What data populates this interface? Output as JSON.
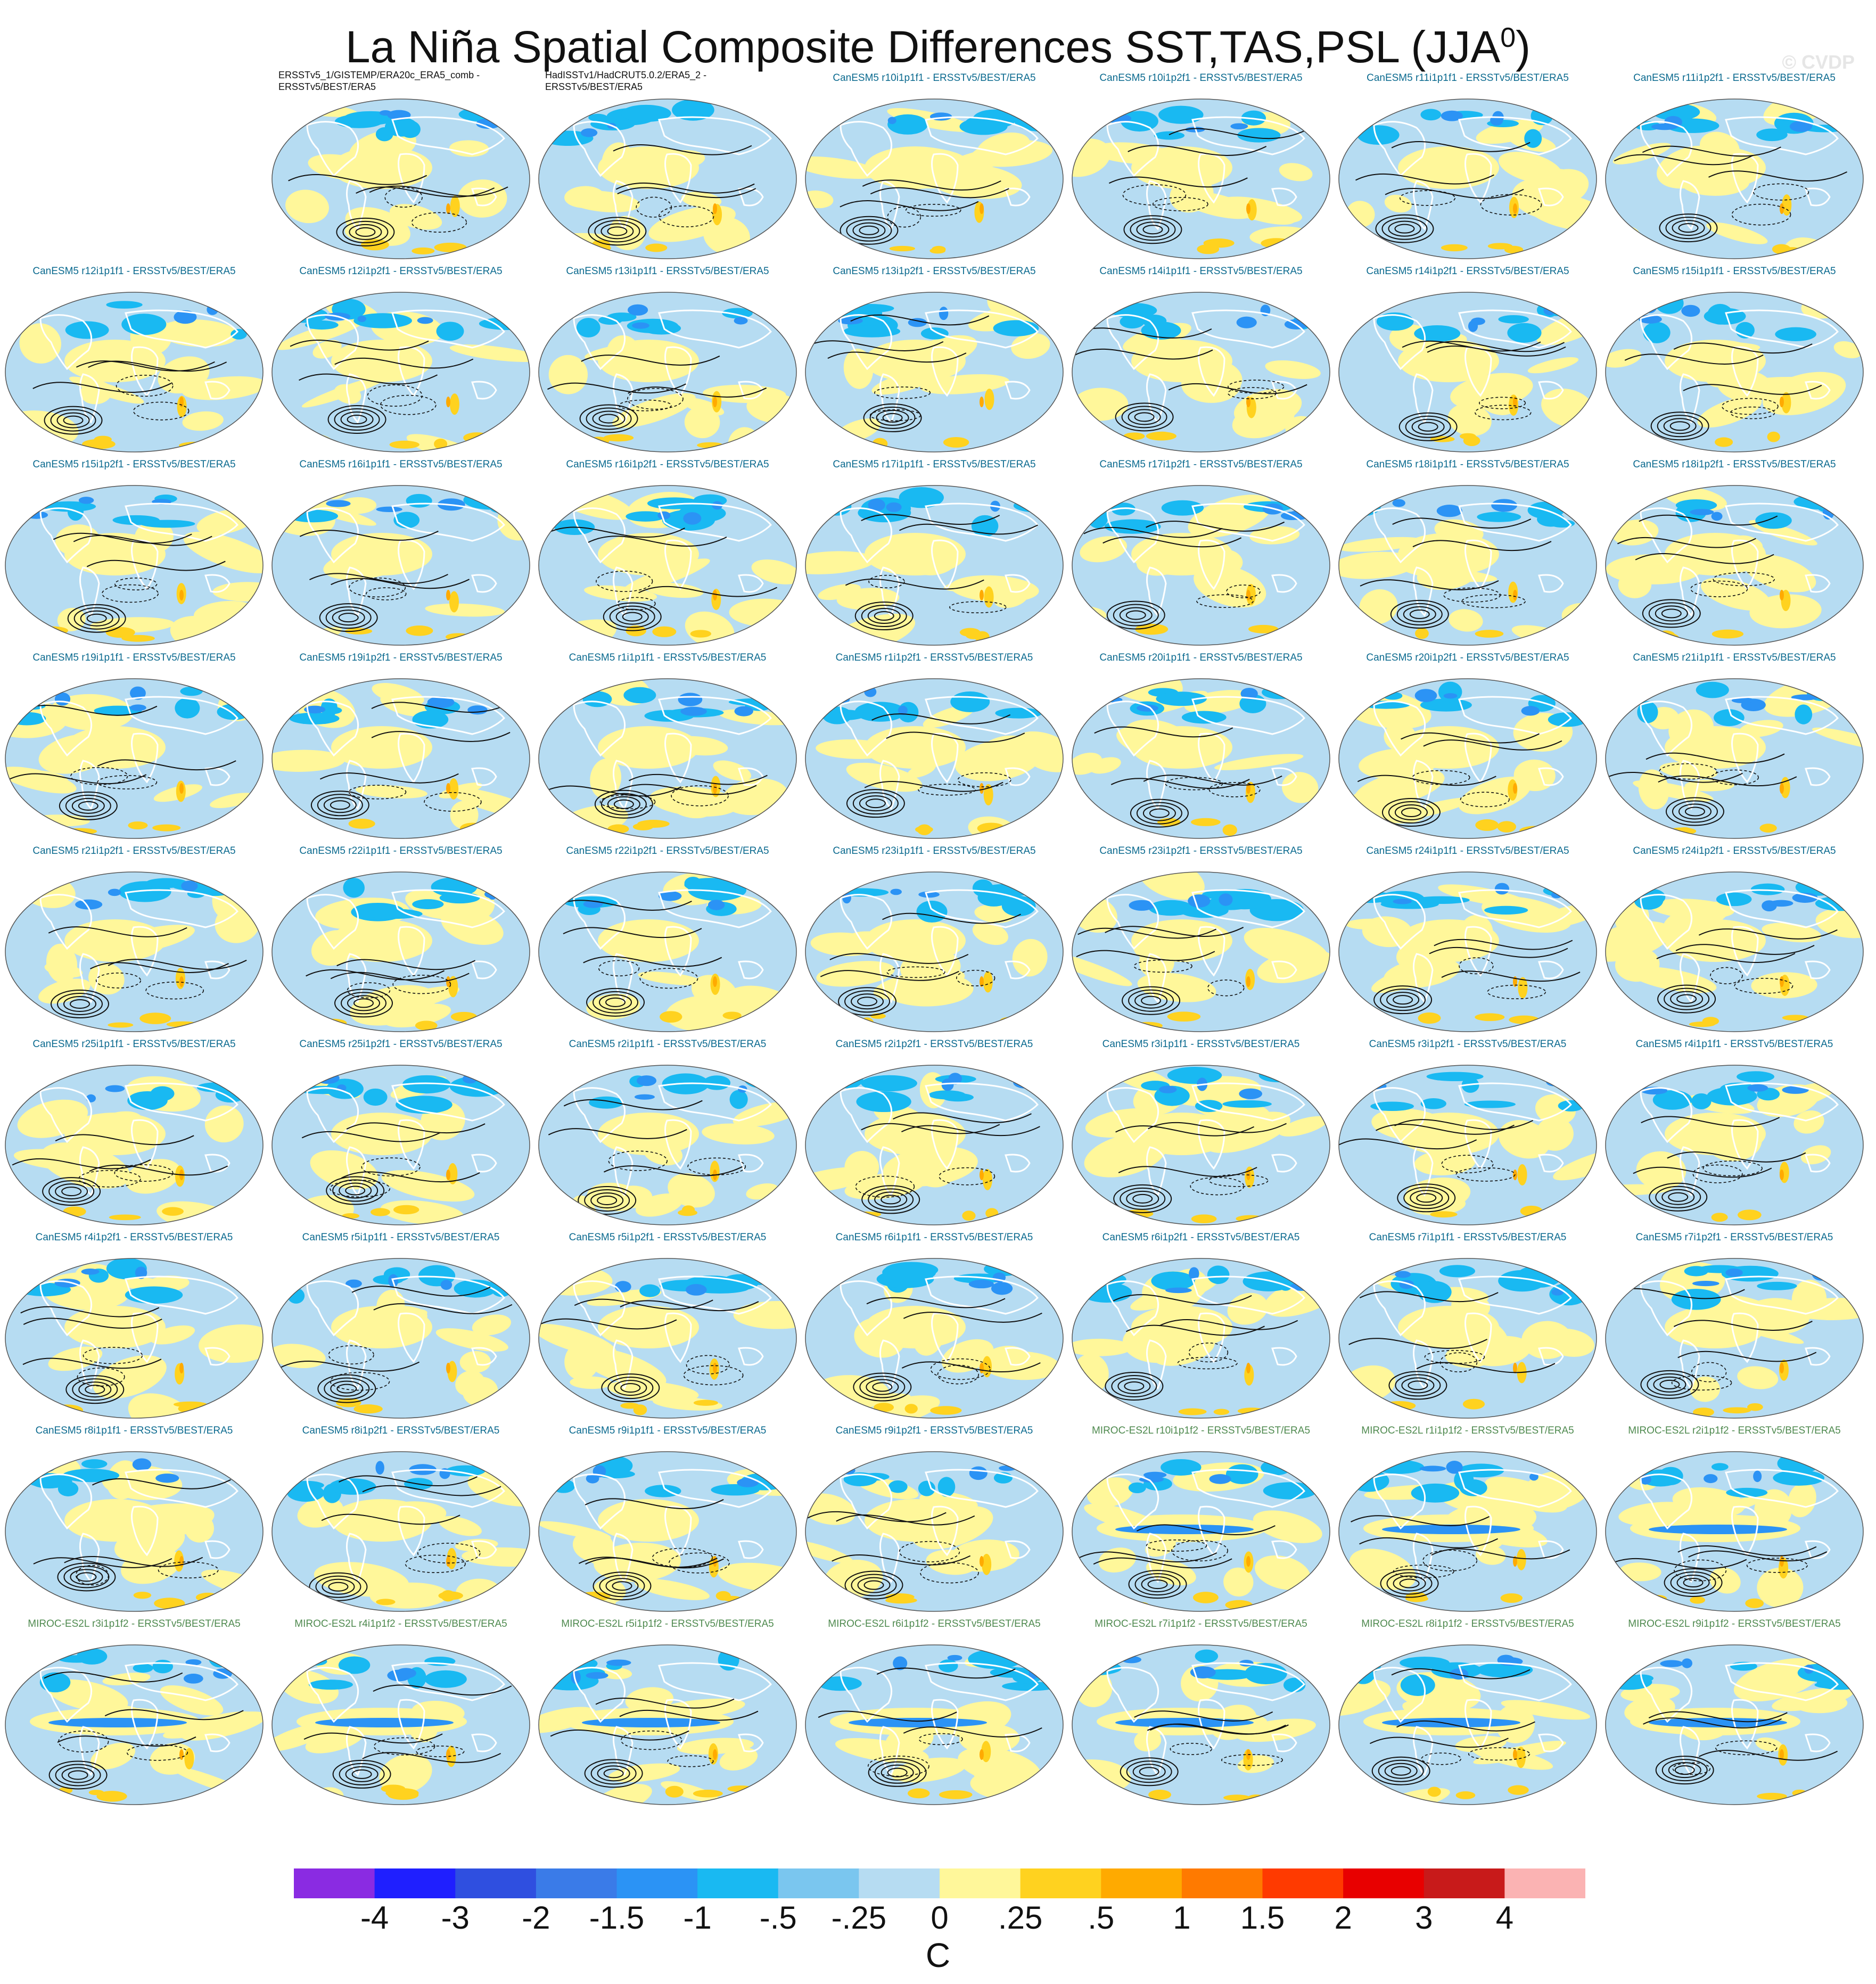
{
  "title": {
    "text": "La Niña Spatial Composite Differences SST,TAS,PSL (JJA",
    "superscript": "0",
    "close": ")"
  },
  "watermark": "© CVDP",
  "colorbar": {
    "units": "C",
    "colors": [
      "#8a2be2",
      "#1f1fff",
      "#2f4fe0",
      "#3a7be8",
      "#2b93f5",
      "#19b9f2",
      "#7ac6ef",
      "#b6dcf2",
      "#fff79a",
      "#ffd21f",
      "#ffaa00",
      "#ff7a00",
      "#ff3a00",
      "#e80000",
      "#c81a1a",
      "#fbb3b3"
    ],
    "labels": [
      "-4",
      "-3",
      "-2",
      "-1.5",
      "-1",
      "-.5",
      "-.25",
      "0",
      ".25",
      ".5",
      "1",
      "1.5",
      "2",
      "3",
      "4"
    ]
  },
  "panels": [
    {
      "label": "",
      "model": "blank"
    },
    {
      "label": "ERSSTv5_1/GISTEMP/ERA20c_ERA5_comb - ERSSTv5/BEST/ERA5",
      "model": "obs"
    },
    {
      "label": "HadISSTv1/HadCRUT5.0.2/ERA5_2 - ERSSTv5/BEST/ERA5",
      "model": "obs"
    },
    {
      "label": "CanESM5 r10i1p1f1 - ERSSTv5/BEST/ERA5",
      "model": "canesm"
    },
    {
      "label": "CanESM5 r10i1p2f1 - ERSSTv5/BEST/ERA5",
      "model": "canesm"
    },
    {
      "label": "CanESM5 r11i1p1f1 - ERSSTv5/BEST/ERA5",
      "model": "canesm"
    },
    {
      "label": "CanESM5 r11i1p2f1 - ERSSTv5/BEST/ERA5",
      "model": "canesm"
    },
    {
      "label": "CanESM5 r12i1p1f1 - ERSSTv5/BEST/ERA5",
      "model": "canesm"
    },
    {
      "label": "CanESM5 r12i1p2f1 - ERSSTv5/BEST/ERA5",
      "model": "canesm"
    },
    {
      "label": "CanESM5 r13i1p1f1 - ERSSTv5/BEST/ERA5",
      "model": "canesm"
    },
    {
      "label": "CanESM5 r13i1p2f1 - ERSSTv5/BEST/ERA5",
      "model": "canesm"
    },
    {
      "label": "CanESM5 r14i1p1f1 - ERSSTv5/BEST/ERA5",
      "model": "canesm"
    },
    {
      "label": "CanESM5 r14i1p2f1 - ERSSTv5/BEST/ERA5",
      "model": "canesm"
    },
    {
      "label": "CanESM5 r15i1p1f1 - ERSSTv5/BEST/ERA5",
      "model": "canesm"
    },
    {
      "label": "CanESM5 r15i1p2f1 - ERSSTv5/BEST/ERA5",
      "model": "canesm"
    },
    {
      "label": "CanESM5 r16i1p1f1 - ERSSTv5/BEST/ERA5",
      "model": "canesm"
    },
    {
      "label": "CanESM5 r16i1p2f1 - ERSSTv5/BEST/ERA5",
      "model": "canesm"
    },
    {
      "label": "CanESM5 r17i1p1f1 - ERSSTv5/BEST/ERA5",
      "model": "canesm"
    },
    {
      "label": "CanESM5 r17i1p2f1 - ERSSTv5/BEST/ERA5",
      "model": "canesm"
    },
    {
      "label": "CanESM5 r18i1p1f1 - ERSSTv5/BEST/ERA5",
      "model": "canesm"
    },
    {
      "label": "CanESM5 r18i1p2f1 - ERSSTv5/BEST/ERA5",
      "model": "canesm"
    },
    {
      "label": "CanESM5 r19i1p1f1 - ERSSTv5/BEST/ERA5",
      "model": "canesm"
    },
    {
      "label": "CanESM5 r19i1p2f1 - ERSSTv5/BEST/ERA5",
      "model": "canesm"
    },
    {
      "label": "CanESM5 r1i1p1f1 - ERSSTv5/BEST/ERA5",
      "model": "canesm"
    },
    {
      "label": "CanESM5 r1i1p2f1 - ERSSTv5/BEST/ERA5",
      "model": "canesm"
    },
    {
      "label": "CanESM5 r20i1p1f1 - ERSSTv5/BEST/ERA5",
      "model": "canesm"
    },
    {
      "label": "CanESM5 r20i1p2f1 - ERSSTv5/BEST/ERA5",
      "model": "canesm"
    },
    {
      "label": "CanESM5 r21i1p1f1 - ERSSTv5/BEST/ERA5",
      "model": "canesm"
    },
    {
      "label": "CanESM5 r21i1p2f1 - ERSSTv5/BEST/ERA5",
      "model": "canesm"
    },
    {
      "label": "CanESM5 r22i1p1f1 - ERSSTv5/BEST/ERA5",
      "model": "canesm"
    },
    {
      "label": "CanESM5 r22i1p2f1 - ERSSTv5/BEST/ERA5",
      "model": "canesm"
    },
    {
      "label": "CanESM5 r23i1p1f1 - ERSSTv5/BEST/ERA5",
      "model": "canesm"
    },
    {
      "label": "CanESM5 r23i1p2f1 - ERSSTv5/BEST/ERA5",
      "model": "canesm"
    },
    {
      "label": "CanESM5 r24i1p1f1 - ERSSTv5/BEST/ERA5",
      "model": "canesm"
    },
    {
      "label": "CanESM5 r24i1p2f1 - ERSSTv5/BEST/ERA5",
      "model": "canesm"
    },
    {
      "label": "CanESM5 r25i1p1f1 - ERSSTv5/BEST/ERA5",
      "model": "canesm"
    },
    {
      "label": "CanESM5 r25i1p2f1 - ERSSTv5/BEST/ERA5",
      "model": "canesm"
    },
    {
      "label": "CanESM5 r2i1p1f1 - ERSSTv5/BEST/ERA5",
      "model": "canesm"
    },
    {
      "label": "CanESM5 r2i1p2f1 - ERSSTv5/BEST/ERA5",
      "model": "canesm"
    },
    {
      "label": "CanESM5 r3i1p1f1 - ERSSTv5/BEST/ERA5",
      "model": "canesm"
    },
    {
      "label": "CanESM5 r3i1p2f1 - ERSSTv5/BEST/ERA5",
      "model": "canesm"
    },
    {
      "label": "CanESM5 r4i1p1f1 - ERSSTv5/BEST/ERA5",
      "model": "canesm"
    },
    {
      "label": "CanESM5 r4i1p2f1 - ERSSTv5/BEST/ERA5",
      "model": "canesm"
    },
    {
      "label": "CanESM5 r5i1p1f1 - ERSSTv5/BEST/ERA5",
      "model": "canesm"
    },
    {
      "label": "CanESM5 r5i1p2f1 - ERSSTv5/BEST/ERA5",
      "model": "canesm"
    },
    {
      "label": "CanESM5 r6i1p1f1 - ERSSTv5/BEST/ERA5",
      "model": "canesm"
    },
    {
      "label": "CanESM5 r6i1p2f1 - ERSSTv5/BEST/ERA5",
      "model": "canesm"
    },
    {
      "label": "CanESM5 r7i1p1f1 - ERSSTv5/BEST/ERA5",
      "model": "canesm"
    },
    {
      "label": "CanESM5 r7i1p2f1 - ERSSTv5/BEST/ERA5",
      "model": "canesm"
    },
    {
      "label": "CanESM5 r8i1p1f1 - ERSSTv5/BEST/ERA5",
      "model": "canesm"
    },
    {
      "label": "CanESM5 r8i1p2f1 - ERSSTv5/BEST/ERA5",
      "model": "canesm"
    },
    {
      "label": "CanESM5 r9i1p1f1 - ERSSTv5/BEST/ERA5",
      "model": "canesm"
    },
    {
      "label": "CanESM5 r9i1p2f1 - ERSSTv5/BEST/ERA5",
      "model": "canesm"
    },
    {
      "label": "MIROC-ES2L r10i1p1f2 - ERSSTv5/BEST/ERA5",
      "model": "miroc"
    },
    {
      "label": "MIROC-ES2L r1i1p1f2 - ERSSTv5/BEST/ERA5",
      "model": "miroc"
    },
    {
      "label": "MIROC-ES2L r2i1p1f2 - ERSSTv5/BEST/ERA5",
      "model": "miroc"
    },
    {
      "label": "MIROC-ES2L r3i1p1f2 - ERSSTv5/BEST/ERA5",
      "model": "miroc"
    },
    {
      "label": "MIROC-ES2L r4i1p1f2 - ERSSTv5/BEST/ERA5",
      "model": "miroc"
    },
    {
      "label": "MIROC-ES2L r5i1p1f2 - ERSSTv5/BEST/ERA5",
      "model": "miroc"
    },
    {
      "label": "MIROC-ES2L r6i1p1f2 - ERSSTv5/BEST/ERA5",
      "model": "miroc"
    },
    {
      "label": "MIROC-ES2L r7i1p1f2 - ERSSTv5/BEST/ERA5",
      "model": "miroc"
    },
    {
      "label": "MIROC-ES2L r8i1p1f2 - ERSSTv5/BEST/ERA5",
      "model": "miroc"
    },
    {
      "label": "MIROC-ES2L r9i1p1f2 - ERSSTv5/BEST/ERA5",
      "model": "miroc"
    }
  ]
}
